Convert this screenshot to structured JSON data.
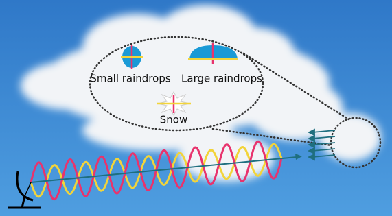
{
  "inset": {
    "items": [
      {
        "label": "Small raindrops"
      },
      {
        "label": "Large raindrops"
      },
      {
        "label": "Snow"
      }
    ]
  }
}
